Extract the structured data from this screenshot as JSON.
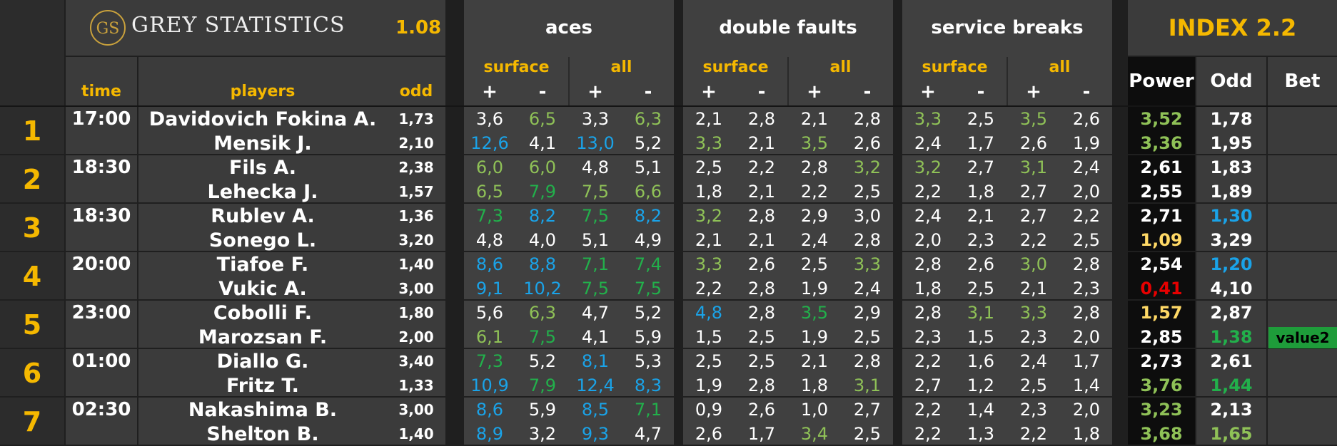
{
  "header": {
    "logo_monogram": "GS",
    "brand": "GREY STATISTICS",
    "version": "1.08",
    "groups": [
      "aces",
      "double faults",
      "service breaks"
    ],
    "index_title": "INDEX 2.2",
    "sub_surface": "surface",
    "sub_all": "all",
    "plus": "+",
    "minus": "-",
    "col_time": "time",
    "col_players": "players",
    "col_odd": "odd",
    "col_power": "Power",
    "col_odd2": "Odd",
    "col_bet": "Bet"
  },
  "colors": {
    "white": "#ffffff",
    "green": "#8fc157",
    "dgreen": "#22b04b",
    "blue": "#1aa3e8",
    "yellow": "#ffd966",
    "red": "#e60000",
    "accent": "#f5b800"
  },
  "matches": [
    {
      "rank": "1",
      "time": "17:00",
      "players": [
        {
          "name": "Davidovich Fokina A.",
          "odd": "1,73",
          "stats": [
            [
              "3,6",
              "white"
            ],
            [
              "6,5",
              "green"
            ],
            [
              "3,3",
              "white"
            ],
            [
              "6,3",
              "green"
            ],
            [
              "2,1",
              "white"
            ],
            [
              "2,8",
              "white"
            ],
            [
              "2,1",
              "white"
            ],
            [
              "2,8",
              "white"
            ],
            [
              "3,3",
              "green"
            ],
            [
              "2,5",
              "white"
            ],
            [
              "3,5",
              "green"
            ],
            [
              "2,6",
              "white"
            ]
          ],
          "power": [
            "3,52",
            "green"
          ],
          "odd2": [
            "1,78",
            "white"
          ],
          "bet": ""
        },
        {
          "name": "Mensik J.",
          "odd": "2,10",
          "stats": [
            [
              "12,6",
              "blue"
            ],
            [
              "4,1",
              "white"
            ],
            [
              "13,0",
              "blue"
            ],
            [
              "5,2",
              "white"
            ],
            [
              "3,3",
              "green"
            ],
            [
              "2,1",
              "white"
            ],
            [
              "3,5",
              "green"
            ],
            [
              "2,6",
              "white"
            ],
            [
              "2,4",
              "white"
            ],
            [
              "1,7",
              "white"
            ],
            [
              "2,6",
              "white"
            ],
            [
              "1,9",
              "white"
            ]
          ],
          "power": [
            "3,36",
            "green"
          ],
          "odd2": [
            "1,95",
            "white"
          ],
          "bet": ""
        }
      ]
    },
    {
      "rank": "2",
      "time": "18:30",
      "players": [
        {
          "name": "Fils A.",
          "odd": "2,38",
          "stats": [
            [
              "6,0",
              "green"
            ],
            [
              "6,0",
              "green"
            ],
            [
              "4,8",
              "white"
            ],
            [
              "5,1",
              "white"
            ],
            [
              "2,5",
              "white"
            ],
            [
              "2,2",
              "white"
            ],
            [
              "2,8",
              "white"
            ],
            [
              "3,2",
              "green"
            ],
            [
              "3,2",
              "green"
            ],
            [
              "2,7",
              "white"
            ],
            [
              "3,1",
              "green"
            ],
            [
              "2,4",
              "white"
            ]
          ],
          "power": [
            "2,61",
            "white"
          ],
          "odd2": [
            "1,83",
            "white"
          ],
          "bet": ""
        },
        {
          "name": "Lehecka J.",
          "odd": "1,57",
          "stats": [
            [
              "6,5",
              "green"
            ],
            [
              "7,9",
              "dgreen"
            ],
            [
              "7,5",
              "green"
            ],
            [
              "6,6",
              "green"
            ],
            [
              "1,8",
              "white"
            ],
            [
              "2,1",
              "white"
            ],
            [
              "2,2",
              "white"
            ],
            [
              "2,5",
              "white"
            ],
            [
              "2,2",
              "white"
            ],
            [
              "1,8",
              "white"
            ],
            [
              "2,7",
              "white"
            ],
            [
              "2,0",
              "white"
            ]
          ],
          "power": [
            "2,55",
            "white"
          ],
          "odd2": [
            "1,89",
            "white"
          ],
          "bet": ""
        }
      ]
    },
    {
      "rank": "3",
      "time": "18:30",
      "players": [
        {
          "name": "Rublev A.",
          "odd": "1,36",
          "stats": [
            [
              "7,3",
              "dgreen"
            ],
            [
              "8,2",
              "blue"
            ],
            [
              "7,5",
              "dgreen"
            ],
            [
              "8,2",
              "blue"
            ],
            [
              "3,2",
              "green"
            ],
            [
              "2,8",
              "white"
            ],
            [
              "2,9",
              "white"
            ],
            [
              "3,0",
              "white"
            ],
            [
              "2,4",
              "white"
            ],
            [
              "2,1",
              "white"
            ],
            [
              "2,7",
              "white"
            ],
            [
              "2,2",
              "white"
            ]
          ],
          "power": [
            "2,71",
            "white"
          ],
          "odd2": [
            "1,30",
            "blue"
          ],
          "bet": ""
        },
        {
          "name": "Sonego L.",
          "odd": "3,20",
          "stats": [
            [
              "4,8",
              "white"
            ],
            [
              "4,0",
              "white"
            ],
            [
              "5,1",
              "white"
            ],
            [
              "4,9",
              "white"
            ],
            [
              "2,1",
              "white"
            ],
            [
              "2,1",
              "white"
            ],
            [
              "2,4",
              "white"
            ],
            [
              "2,8",
              "white"
            ],
            [
              "2,0",
              "white"
            ],
            [
              "2,3",
              "white"
            ],
            [
              "2,2",
              "white"
            ],
            [
              "2,5",
              "white"
            ]
          ],
          "power": [
            "1,09",
            "yellow"
          ],
          "odd2": [
            "3,29",
            "white"
          ],
          "bet": ""
        }
      ]
    },
    {
      "rank": "4",
      "time": "20:00",
      "players": [
        {
          "name": "Tiafoe F.",
          "odd": "1,40",
          "stats": [
            [
              "8,6",
              "blue"
            ],
            [
              "8,8",
              "blue"
            ],
            [
              "7,1",
              "dgreen"
            ],
            [
              "7,4",
              "dgreen"
            ],
            [
              "3,3",
              "green"
            ],
            [
              "2,6",
              "white"
            ],
            [
              "2,5",
              "white"
            ],
            [
              "3,3",
              "green"
            ],
            [
              "2,8",
              "white"
            ],
            [
              "2,6",
              "white"
            ],
            [
              "3,0",
              "green"
            ],
            [
              "2,8",
              "white"
            ]
          ],
          "power": [
            "2,54",
            "white"
          ],
          "odd2": [
            "1,20",
            "blue"
          ],
          "bet": ""
        },
        {
          "name": "Vukic A.",
          "odd": "3,00",
          "stats": [
            [
              "9,1",
              "blue"
            ],
            [
              "10,2",
              "blue"
            ],
            [
              "7,5",
              "dgreen"
            ],
            [
              "7,5",
              "dgreen"
            ],
            [
              "2,2",
              "white"
            ],
            [
              "2,8",
              "white"
            ],
            [
              "1,9",
              "white"
            ],
            [
              "2,4",
              "white"
            ],
            [
              "1,8",
              "white"
            ],
            [
              "2,5",
              "white"
            ],
            [
              "2,1",
              "white"
            ],
            [
              "2,3",
              "white"
            ]
          ],
          "power": [
            "0,41",
            "red"
          ],
          "odd2": [
            "4,10",
            "white"
          ],
          "bet": ""
        }
      ]
    },
    {
      "rank": "5",
      "time": "23:00",
      "players": [
        {
          "name": "Cobolli F.",
          "odd": "1,80",
          "stats": [
            [
              "5,6",
              "white"
            ],
            [
              "6,3",
              "green"
            ],
            [
              "4,7",
              "white"
            ],
            [
              "5,2",
              "white"
            ],
            [
              "4,8",
              "blue"
            ],
            [
              "2,8",
              "white"
            ],
            [
              "3,5",
              "dgreen"
            ],
            [
              "2,9",
              "white"
            ],
            [
              "2,8",
              "white"
            ],
            [
              "3,1",
              "green"
            ],
            [
              "3,3",
              "green"
            ],
            [
              "2,8",
              "white"
            ]
          ],
          "power": [
            "1,57",
            "yellow"
          ],
          "odd2": [
            "2,87",
            "white"
          ],
          "bet": ""
        },
        {
          "name": "Marozsan F.",
          "odd": "2,00",
          "stats": [
            [
              "6,1",
              "green"
            ],
            [
              "7,5",
              "dgreen"
            ],
            [
              "4,1",
              "white"
            ],
            [
              "5,9",
              "white"
            ],
            [
              "1,5",
              "white"
            ],
            [
              "2,5",
              "white"
            ],
            [
              "1,9",
              "white"
            ],
            [
              "2,5",
              "white"
            ],
            [
              "2,3",
              "white"
            ],
            [
              "1,5",
              "white"
            ],
            [
              "2,3",
              "white"
            ],
            [
              "2,0",
              "white"
            ]
          ],
          "power": [
            "2,85",
            "white"
          ],
          "odd2": [
            "1,38",
            "dgreen"
          ],
          "bet": "value2"
        }
      ]
    },
    {
      "rank": "6",
      "time": "01:00",
      "players": [
        {
          "name": "Diallo G.",
          "odd": "3,40",
          "stats": [
            [
              "7,3",
              "dgreen"
            ],
            [
              "5,2",
              "white"
            ],
            [
              "8,1",
              "blue"
            ],
            [
              "5,3",
              "white"
            ],
            [
              "2,5",
              "white"
            ],
            [
              "2,5",
              "white"
            ],
            [
              "2,1",
              "white"
            ],
            [
              "2,8",
              "white"
            ],
            [
              "2,2",
              "white"
            ],
            [
              "1,6",
              "white"
            ],
            [
              "2,4",
              "white"
            ],
            [
              "1,7",
              "white"
            ]
          ],
          "power": [
            "2,73",
            "white"
          ],
          "odd2": [
            "2,61",
            "white"
          ],
          "bet": ""
        },
        {
          "name": "Fritz T.",
          "odd": "1,33",
          "stats": [
            [
              "10,9",
              "blue"
            ],
            [
              "7,9",
              "dgreen"
            ],
            [
              "12,4",
              "blue"
            ],
            [
              "8,3",
              "blue"
            ],
            [
              "1,9",
              "white"
            ],
            [
              "2,8",
              "white"
            ],
            [
              "1,8",
              "white"
            ],
            [
              "3,1",
              "green"
            ],
            [
              "2,7",
              "white"
            ],
            [
              "1,2",
              "white"
            ],
            [
              "2,5",
              "white"
            ],
            [
              "1,4",
              "white"
            ]
          ],
          "power": [
            "3,76",
            "green"
          ],
          "odd2": [
            "1,44",
            "dgreen"
          ],
          "bet": ""
        }
      ]
    },
    {
      "rank": "7",
      "time": "02:30",
      "players": [
        {
          "name": "Nakashima B.",
          "odd": "3,00",
          "stats": [
            [
              "8,6",
              "blue"
            ],
            [
              "5,9",
              "white"
            ],
            [
              "8,5",
              "blue"
            ],
            [
              "7,1",
              "dgreen"
            ],
            [
              "0,9",
              "white"
            ],
            [
              "2,6",
              "white"
            ],
            [
              "1,0",
              "white"
            ],
            [
              "2,7",
              "white"
            ],
            [
              "2,2",
              "white"
            ],
            [
              "1,4",
              "white"
            ],
            [
              "2,3",
              "white"
            ],
            [
              "2,0",
              "white"
            ]
          ],
          "power": [
            "3,23",
            "green"
          ],
          "odd2": [
            "2,13",
            "white"
          ],
          "bet": ""
        },
        {
          "name": "Shelton B.",
          "odd": "1,40",
          "stats": [
            [
              "8,9",
              "blue"
            ],
            [
              "3,2",
              "white"
            ],
            [
              "9,3",
              "blue"
            ],
            [
              "4,7",
              "white"
            ],
            [
              "2,6",
              "white"
            ],
            [
              "1,7",
              "white"
            ],
            [
              "3,4",
              "green"
            ],
            [
              "2,5",
              "white"
            ],
            [
              "2,2",
              "white"
            ],
            [
              "1,3",
              "white"
            ],
            [
              "2,2",
              "white"
            ],
            [
              "1,8",
              "white"
            ]
          ],
          "power": [
            "3,68",
            "green"
          ],
          "odd2": [
            "1,65",
            "green"
          ],
          "bet": ""
        }
      ]
    }
  ]
}
